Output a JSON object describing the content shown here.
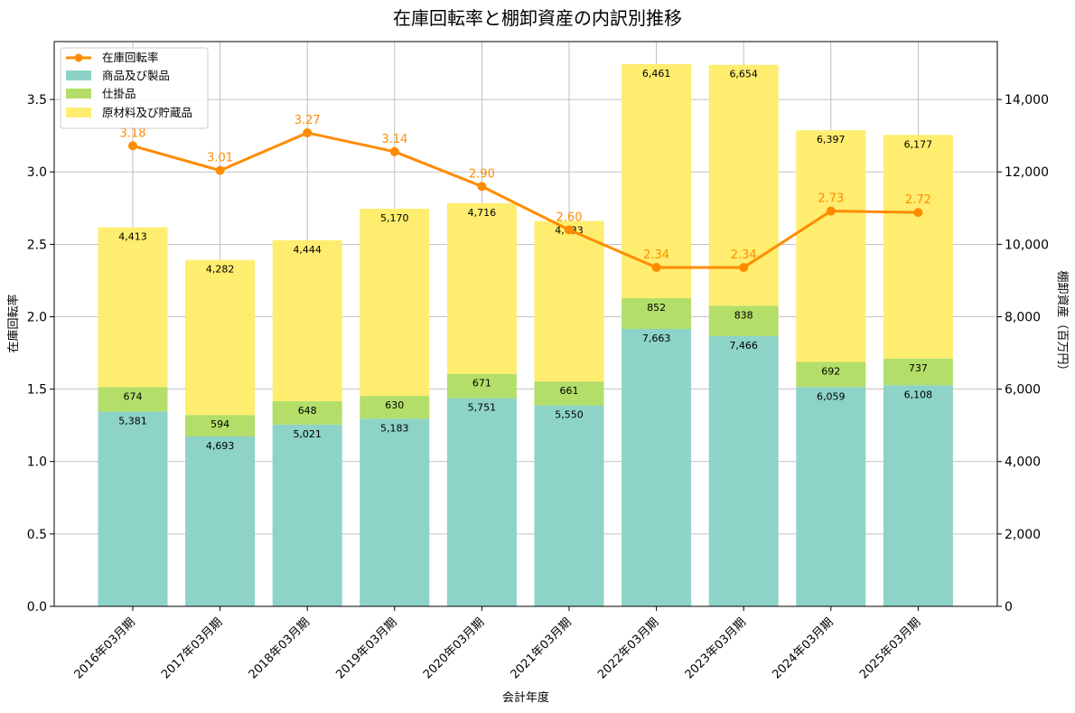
{
  "chart_data": {
    "type": "bar",
    "title": "在庫回転率と棚卸資産の内訳別推移",
    "xlabel": "会計年度",
    "ylabel_left": "在庫回転率",
    "ylabel_right": "棚卸資産（百万円）",
    "categories": [
      "2016年03月期",
      "2017年03月期",
      "2018年03月期",
      "2019年03月期",
      "2020年03月期",
      "2021年03月期",
      "2022年03月期",
      "2023年03月期",
      "2024年03月期",
      "2025年03月期"
    ],
    "series": [
      {
        "name": "商品及び製品",
        "kind": "bar",
        "axis": "right",
        "color": "#8dd3c7",
        "values": [
          5381,
          4693,
          5021,
          5183,
          5751,
          5550,
          7663,
          7466,
          6059,
          6108
        ],
        "labels": [
          "5,381",
          "4,693",
          "5,021",
          "5,183",
          "5,751",
          "5,550",
          "7,663",
          "7,466",
          "6,059",
          "6,108"
        ]
      },
      {
        "name": "仕掛品",
        "kind": "bar",
        "axis": "right",
        "color": "#b3de69",
        "values": [
          674,
          594,
          648,
          630,
          671,
          661,
          852,
          838,
          692,
          737
        ],
        "labels": [
          "674",
          "594",
          "648",
          "630",
          "671",
          "661",
          "852",
          "838",
          "692",
          "737"
        ]
      },
      {
        "name": "原材料及び貯蔵品",
        "kind": "bar",
        "axis": "right",
        "color": "#ffed6f",
        "values": [
          4413,
          4282,
          4444,
          5170,
          4716,
          4433,
          6461,
          6654,
          6397,
          6177
        ],
        "labels": [
          "4,413",
          "4,282",
          "4,444",
          "5,170",
          "4,716",
          "4,433",
          "6,461",
          "6,654",
          "6,397",
          "6,177"
        ]
      },
      {
        "name": "在庫回転率",
        "kind": "line",
        "axis": "left",
        "color": "#ff8c00",
        "values": [
          3.18,
          3.01,
          3.27,
          3.14,
          2.9,
          2.6,
          2.34,
          2.34,
          2.73,
          2.72
        ],
        "labels": [
          "3.18",
          "3.01",
          "3.27",
          "3.14",
          "2.90",
          "2.60",
          "2.34",
          "2.34",
          "2.73",
          "2.72"
        ]
      }
    ],
    "ylim_left": [
      0,
      3.9
    ],
    "ylim_right": [
      0,
      15600
    ],
    "yticks_left": [
      "0.0",
      "0.5",
      "1.0",
      "1.5",
      "2.0",
      "2.5",
      "3.0",
      "3.5"
    ],
    "yticks_right": [
      "0",
      "2,000",
      "4,000",
      "6,000",
      "8,000",
      "10,000",
      "12,000",
      "14,000"
    ],
    "grid": true,
    "legend_position": "top-left"
  }
}
